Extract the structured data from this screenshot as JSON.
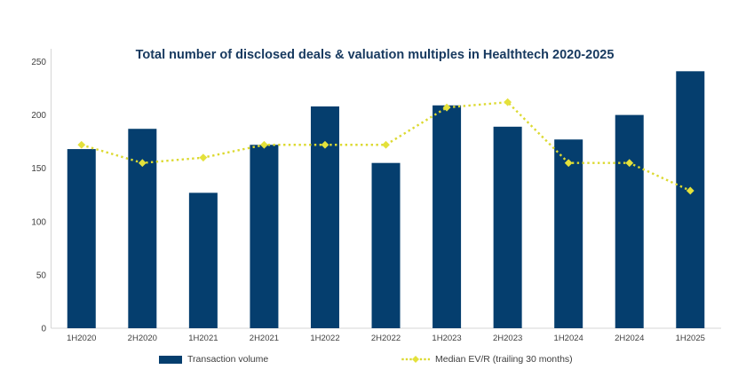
{
  "title": "Total number of disclosed deals & valuation multiples in Healthtech 2020-2025",
  "colors": {
    "bar": "#053e6e",
    "line": "#dcd930",
    "marker": "#e4e13b",
    "title": "#17395f",
    "axis_text": "#404040",
    "axis_line": "#d6d6d6",
    "background": "#ffffff"
  },
  "chart_data": {
    "type": "combo (bar + line)",
    "title": "Total number of disclosed deals & valuation multiples in Healthtech 2020-2025",
    "categories": [
      "1H2020",
      "2H2020",
      "1H2021",
      "2H2021",
      "1H2022",
      "2H2022",
      "1H2023",
      "2H2023",
      "1H2024",
      "2H2024",
      "1H2025"
    ],
    "series": [
      {
        "name": "Transaction volume",
        "kind": "bar",
        "values": [
          168,
          187,
          127,
          172,
          208,
          155,
          209,
          189,
          177,
          200,
          241
        ]
      },
      {
        "name": "Median EV/R (trailing 30 months)",
        "kind": "line",
        "style": "dotted with diamond markers",
        "axis": "secondary axis not shown; values estimated as plotted positions in left-axis units",
        "values": [
          172,
          155,
          160,
          172,
          172,
          172,
          207,
          212,
          155,
          155,
          129
        ]
      }
    ],
    "xlabel": "",
    "ylabel": "",
    "ylim": [
      0,
      250
    ],
    "yticks": [
      0,
      50,
      100,
      150,
      200,
      250
    ],
    "grid": false,
    "legend_position": "bottom"
  },
  "legend": {
    "items": [
      {
        "label": "Transaction volume"
      },
      {
        "label": "Median EV/R (trailing 30 months)"
      }
    ]
  }
}
